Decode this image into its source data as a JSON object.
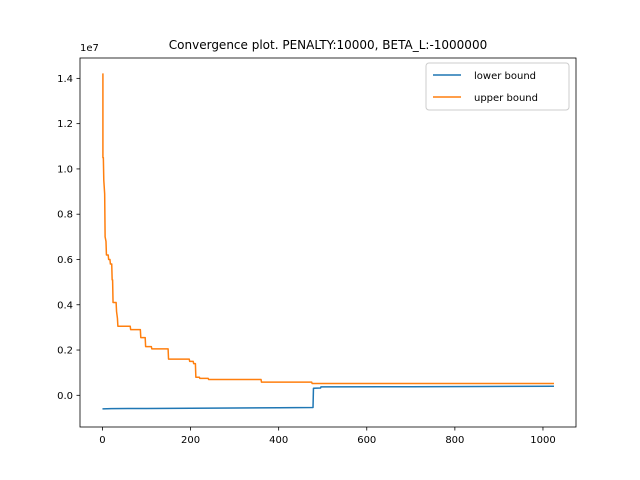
{
  "chart_data": {
    "type": "line",
    "title": "Convergence plot. PENALTY:10000, BETA_L:-1000000",
    "xlabel": "",
    "ylabel": "",
    "y_offset_label": "1e7",
    "y_scale_factor": 10000000,
    "xlim": [
      -51,
      1075
    ],
    "ylim": [
      -1400000,
      14900000
    ],
    "x_ticks": [
      0,
      200,
      400,
      600,
      800,
      1000
    ],
    "x_tick_labels": [
      "0",
      "200",
      "400",
      "600",
      "800",
      "1000"
    ],
    "y_ticks": [
      0,
      2000000,
      4000000,
      6000000,
      8000000,
      10000000,
      12000000,
      14000000
    ],
    "y_tick_labels": [
      "0.0",
      "0.2",
      "0.4",
      "0.6",
      "0.8",
      "1.0",
      "1.2",
      "1.4"
    ],
    "grid": false,
    "legend_position": "top-right",
    "series": [
      {
        "name": "lower bound",
        "color": "#1f77b4",
        "points": [
          [
            0,
            -600000
          ],
          [
            20,
            -590000
          ],
          [
            100,
            -580000
          ],
          [
            200,
            -570000
          ],
          [
            300,
            -560000
          ],
          [
            400,
            -550000
          ],
          [
            478,
            -540000
          ],
          [
            479,
            310000
          ],
          [
            495,
            320000
          ],
          [
            496,
            370000
          ],
          [
            700,
            380000
          ],
          [
            860,
            390000
          ],
          [
            1025,
            400000
          ]
        ]
      },
      {
        "name": "upper bound",
        "color": "#ff7f0e",
        "points": [
          [
            0,
            14200000
          ],
          [
            1,
            14200000
          ],
          [
            1,
            10500000
          ],
          [
            2,
            10500000
          ],
          [
            3,
            9500000
          ],
          [
            5,
            8900000
          ],
          [
            6,
            7000000
          ],
          [
            8,
            6800000
          ],
          [
            9,
            6200000
          ],
          [
            13,
            6200000
          ],
          [
            14,
            6000000
          ],
          [
            17,
            6000000
          ],
          [
            18,
            5800000
          ],
          [
            21,
            5800000
          ],
          [
            22,
            5100000
          ],
          [
            23,
            5100000
          ],
          [
            24,
            4100000
          ],
          [
            31,
            4100000
          ],
          [
            32,
            3700000
          ],
          [
            34,
            3400000
          ],
          [
            35,
            3050000
          ],
          [
            63,
            3050000
          ],
          [
            64,
            2900000
          ],
          [
            86,
            2900000
          ],
          [
            87,
            2550000
          ],
          [
            97,
            2550000
          ],
          [
            98,
            2150000
          ],
          [
            111,
            2150000
          ],
          [
            112,
            2050000
          ],
          [
            149,
            2050000
          ],
          [
            150,
            1600000
          ],
          [
            197,
            1600000
          ],
          [
            198,
            1500000
          ],
          [
            206,
            1500000
          ],
          [
            207,
            1400000
          ],
          [
            211,
            1400000
          ],
          [
            212,
            800000
          ],
          [
            220,
            800000
          ],
          [
            221,
            750000
          ],
          [
            240,
            750000
          ],
          [
            241,
            700000
          ],
          [
            360,
            700000
          ],
          [
            361,
            580000
          ],
          [
            475,
            580000
          ],
          [
            476,
            520000
          ],
          [
            1025,
            520000
          ]
        ]
      }
    ]
  }
}
